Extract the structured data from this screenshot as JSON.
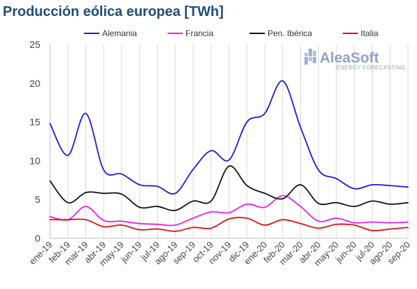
{
  "chart_data": {
    "type": "line",
    "title": "Producción eólica europea [TWh]",
    "categories": [
      "ene-19",
      "feb-19",
      "mar-19",
      "abr-19",
      "may-19",
      "jun-19",
      "jul-19",
      "ago-19",
      "sep-19",
      "oct-19",
      "nov-19",
      "dic-19",
      "ene-20",
      "feb-20",
      "mar-20",
      "abr-20",
      "may-20",
      "jun-20",
      "jul-20",
      "ago-20",
      "sep-20"
    ],
    "ylim": [
      0,
      25
    ],
    "yticks": [
      "0",
      "5",
      "10",
      "15",
      "20",
      "25"
    ],
    "grid": "vertical",
    "legend_position": "top",
    "series": [
      {
        "name": "Alemania",
        "color": "#1a1adf",
        "values": [
          14.8,
          10.7,
          16.1,
          8.8,
          8.3,
          6.9,
          6.7,
          5.8,
          8.9,
          11.3,
          10.1,
          15.0,
          16.1,
          20.3,
          14.3,
          8.8,
          7.7,
          6.4,
          6.9,
          6.8,
          6.6
        ]
      },
      {
        "name": "Francia",
        "color": "#e820e8",
        "values": [
          2.8,
          2.4,
          4.1,
          2.3,
          2.2,
          1.9,
          1.8,
          1.7,
          2.6,
          3.4,
          3.3,
          4.4,
          4.0,
          5.5,
          4.1,
          2.2,
          2.6,
          2.0,
          2.1,
          2.0,
          2.1
        ]
      },
      {
        "name": "Pen. Ibérica",
        "color": "#111111",
        "values": [
          7.4,
          4.6,
          5.9,
          5.8,
          5.7,
          4.0,
          4.1,
          3.6,
          4.8,
          4.8,
          9.3,
          6.8,
          5.8,
          5.1,
          6.9,
          4.5,
          4.6,
          4.1,
          4.8,
          4.4,
          4.6
        ]
      },
      {
        "name": "Italia",
        "color": "#e01010",
        "values": [
          2.4,
          2.4,
          2.4,
          1.5,
          1.7,
          1.1,
          1.2,
          0.9,
          1.4,
          1.3,
          2.5,
          2.6,
          1.7,
          2.4,
          1.9,
          1.3,
          1.8,
          1.7,
          1.0,
          1.2,
          1.4
        ]
      }
    ]
  },
  "logo": {
    "name": "AleaSoft",
    "tagline": "ENERGY FORECASTING",
    "color": "#8fa3c9"
  }
}
